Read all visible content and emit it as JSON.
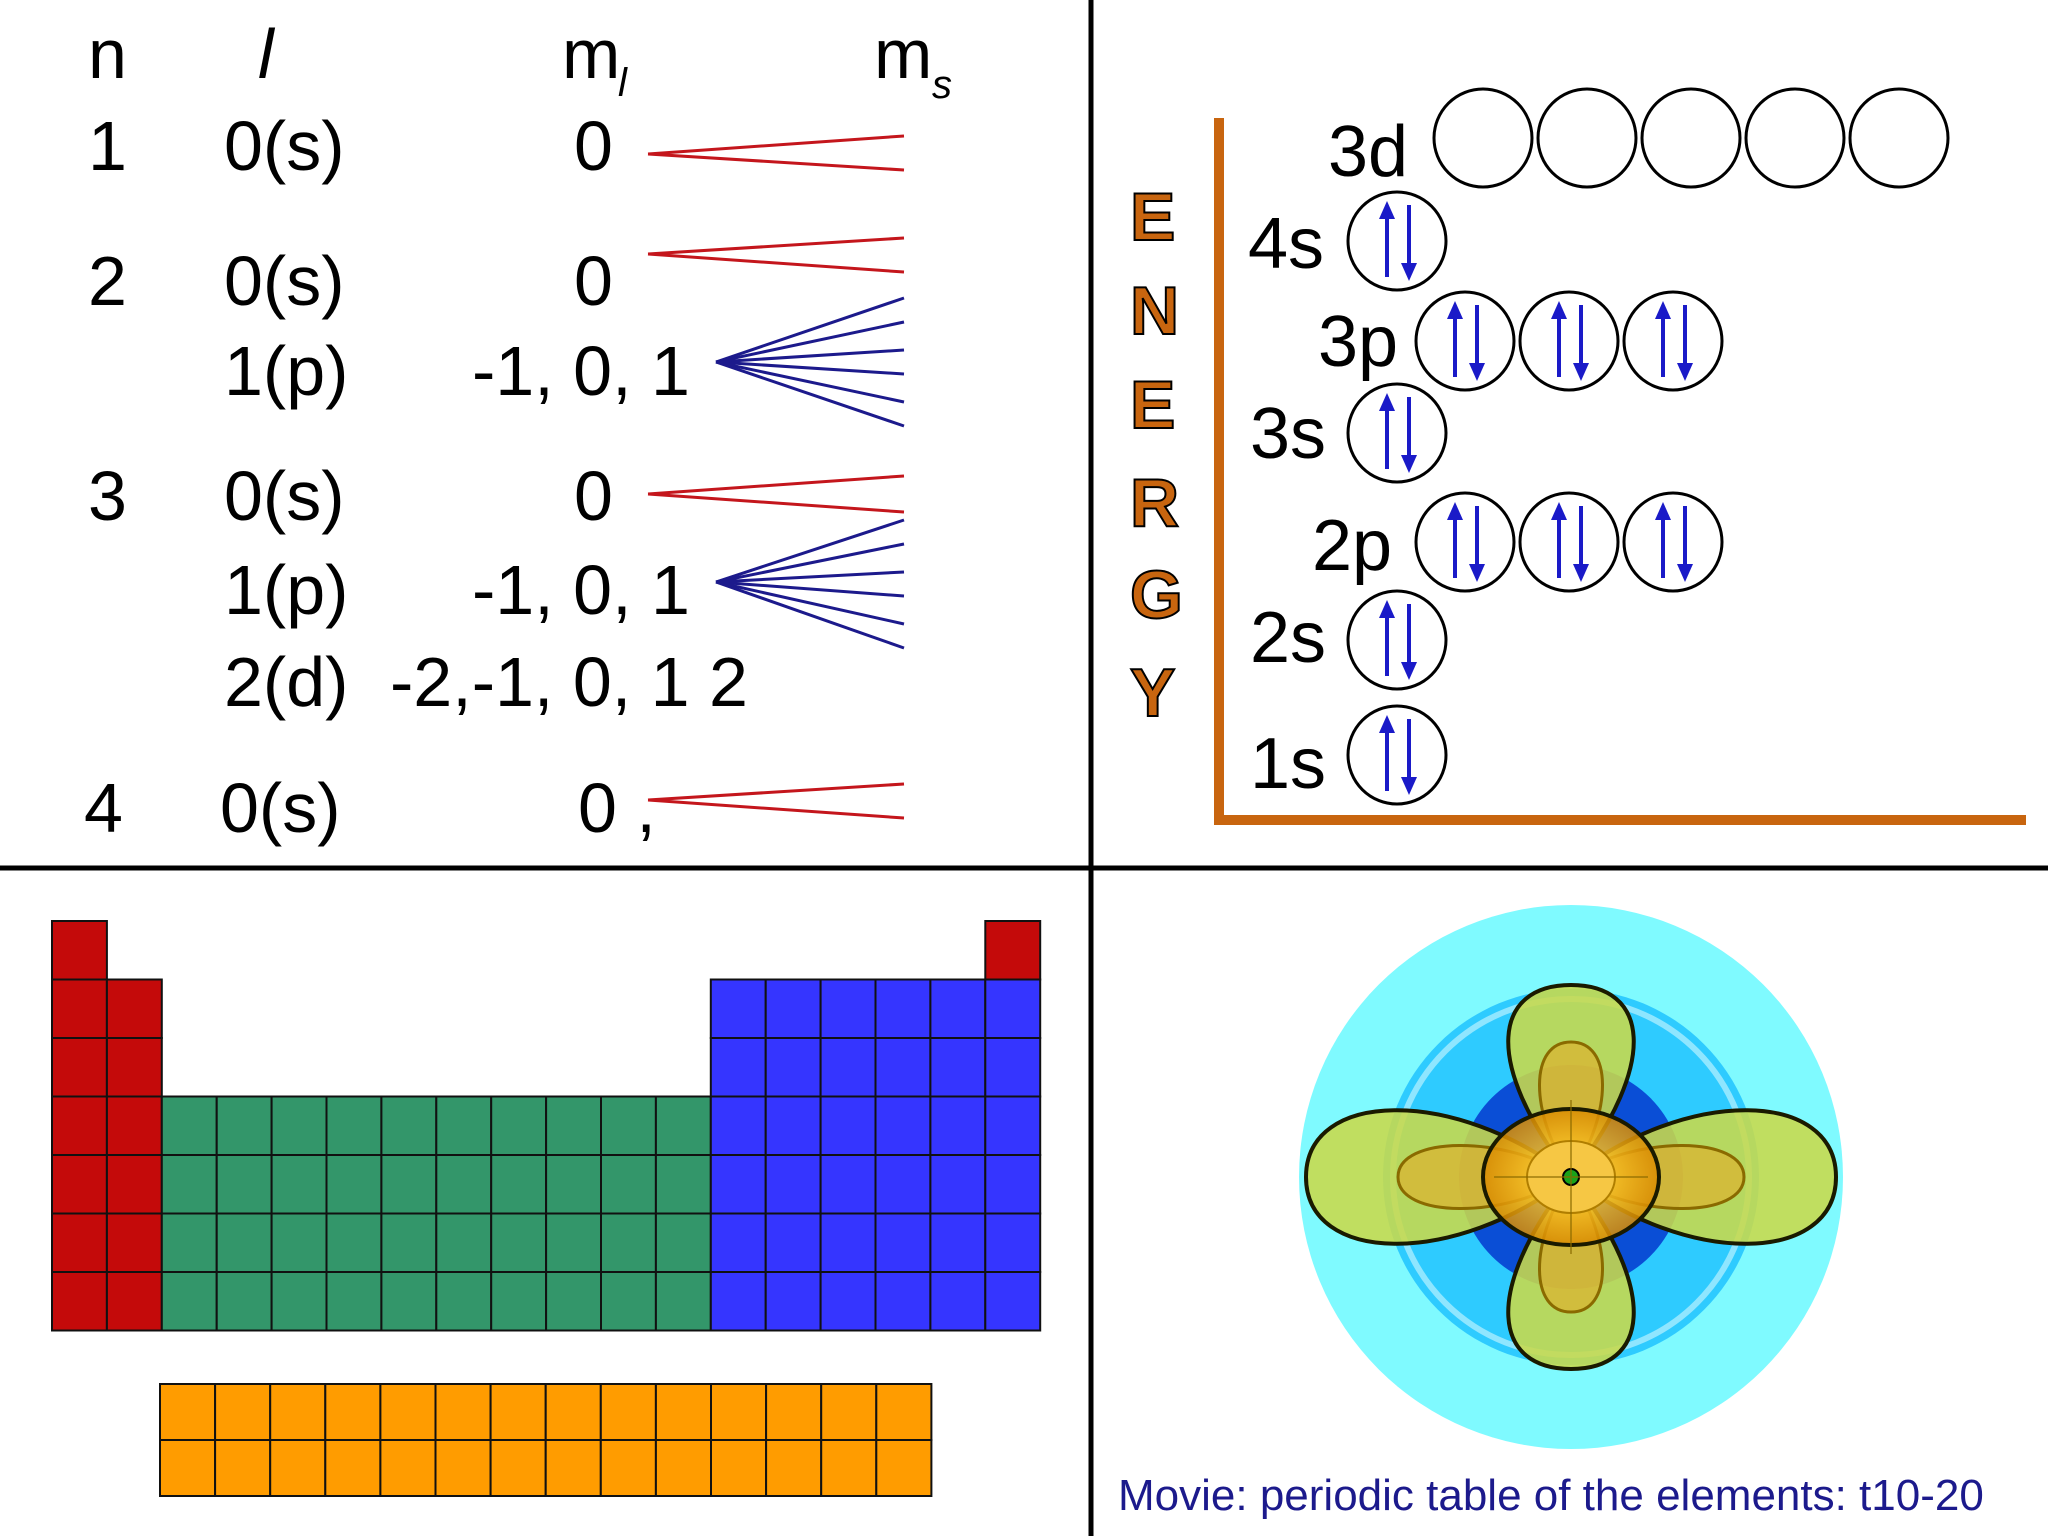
{
  "quantum_table": {
    "headers": {
      "n": "n",
      "l": "l",
      "ml_main": "m",
      "ml_sub": "l",
      "ms_main": "m",
      "ms_sub": "s"
    },
    "rows": [
      {
        "n": "1",
        "l": "0(s)",
        "ml": "0"
      },
      {
        "n": "2",
        "l": "0(s)",
        "ml": "0"
      },
      {
        "n": "",
        "l": "1(p)",
        "ml": "-1, 0, 1"
      },
      {
        "n": "3",
        "l": "0(s)",
        "ml": "0"
      },
      {
        "n": "",
        "l": "1(p)",
        "ml": "-1, 0, 1"
      },
      {
        "n": "",
        "l": "2(d)",
        "ml": "-2,-1, 0, 1  2"
      },
      {
        "n": "4",
        "l": "0(s)",
        "ml": "0 ,"
      }
    ],
    "fan_colors": {
      "s": "#c4161c",
      "p": "#1c1a8c"
    }
  },
  "energy_diagram": {
    "axis_label": [
      "E",
      "N",
      "E",
      "R",
      "G",
      "Y"
    ],
    "axis_color": "#c8650f",
    "arrow_color": "#1a1ac8",
    "levels": [
      {
        "label": "3d",
        "orbitals": 5,
        "electrons": 0
      },
      {
        "label": "4s",
        "orbitals": 1,
        "electrons": 2
      },
      {
        "label": "3p",
        "orbitals": 3,
        "electrons": 6
      },
      {
        "label": "3s",
        "orbitals": 1,
        "electrons": 2
      },
      {
        "label": "2p",
        "orbitals": 3,
        "electrons": 6
      },
      {
        "label": "2s",
        "orbitals": 1,
        "electrons": 2
      },
      {
        "label": "1s",
        "orbitals": 1,
        "electrons": 2
      }
    ]
  },
  "periodic_table": {
    "colors": {
      "s_block": "#c40a0a",
      "d_block": "#33966a",
      "p_block": "#3535ff",
      "f_block": "#ff9c00",
      "helium": "#c40a0a"
    }
  },
  "orbital_image": {
    "colors": {
      "outer": "#7ffaff",
      "middle": "#2ecbff",
      "inner": "#0a4ed6",
      "lobe": "#c9d94a",
      "nucleus": "#19a319"
    }
  },
  "caption": "Movie: periodic table of the elements: t10-20"
}
